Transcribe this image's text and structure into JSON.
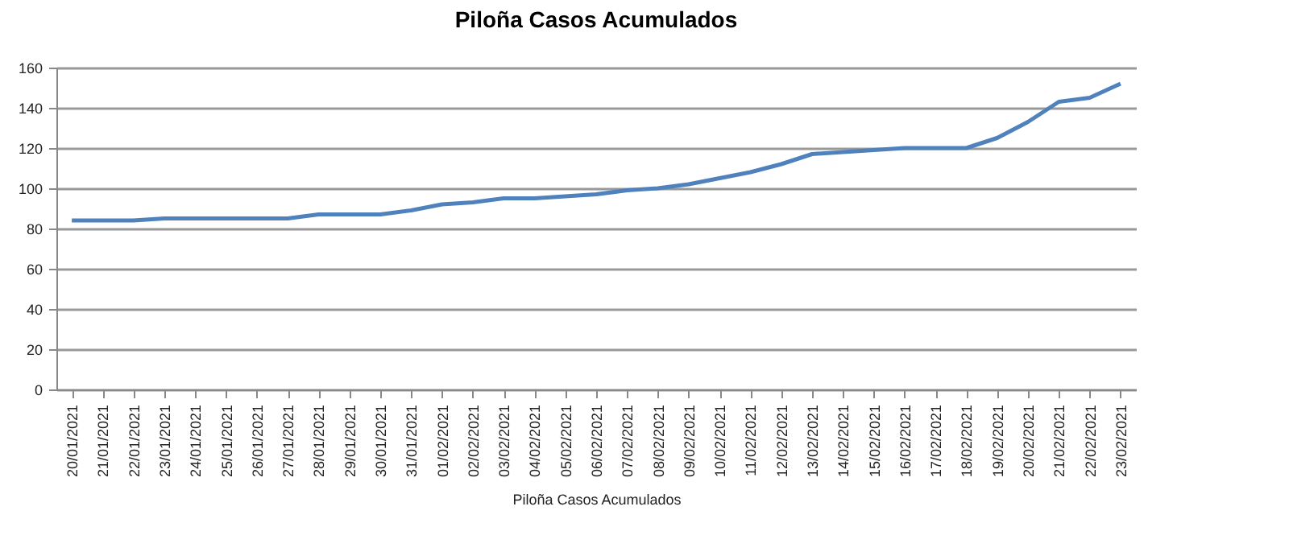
{
  "chart_data": {
    "type": "line",
    "title": "Piloña Casos Acumulados",
    "xlabel": "Piloña Casos Acumulados",
    "categories": [
      "20/01/2021",
      "21/01/2021",
      "22/01/2021",
      "23/01/2021",
      "24/01/2021",
      "25/01/2021",
      "26/01/2021",
      "27/01/2021",
      "28/01/2021",
      "29/01/2021",
      "30/01/2021",
      "31/01/2021",
      "01/02/2021",
      "02/02/2021",
      "03/02/2021",
      "04/02/2021",
      "05/02/2021",
      "06/02/2021",
      "07/02/2021",
      "08/02/2021",
      "09/02/2021",
      "10/02/2021",
      "11/02/2021",
      "12/02/2021",
      "13/02/2021",
      "14/02/2021",
      "15/02/2021",
      "16/02/2021",
      "17/02/2021",
      "18/02/2021",
      "19/02/2021",
      "20/02/2021",
      "21/02/2021",
      "22/02/2021",
      "23/02/2021"
    ],
    "series": [
      {
        "color": "#4f81bd",
        "values": [
          84,
          84,
          84,
          85,
          85,
          85,
          85,
          85,
          87,
          87,
          87,
          89,
          92,
          93,
          95,
          95,
          96,
          97,
          99,
          100,
          102,
          105,
          108,
          112,
          117,
          118,
          119,
          120,
          120,
          120,
          125,
          133,
          143,
          145,
          152
        ]
      }
    ],
    "ylim": [
      0,
      160
    ],
    "yticks": [
      0,
      20,
      40,
      60,
      80,
      100,
      120,
      140,
      160
    ],
    "grid": "y",
    "marker": "none",
    "line_style": "solid"
  }
}
